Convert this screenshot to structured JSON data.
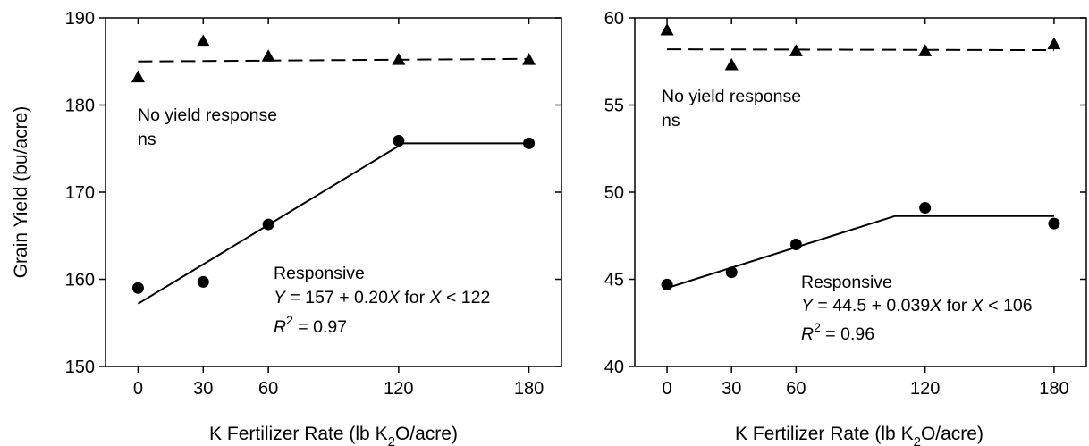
{
  "chart_data": [
    {
      "type": "scatter",
      "ylabel": "Grain Yield (bu/acre)",
      "xlabel_parts": [
        "K Fertilizer Rate (lb K",
        "2",
        "O/acre)"
      ],
      "xticks": [
        0,
        30,
        60,
        120,
        180
      ],
      "yticks": [
        150,
        160,
        170,
        180,
        190
      ],
      "xlim": [
        -15,
        195
      ],
      "ylim": [
        150,
        190
      ],
      "grid": false,
      "series": [
        {
          "marker": "triangle",
          "x": [
            0,
            30,
            60,
            120,
            180
          ],
          "y": [
            183.2,
            187.3,
            185.6,
            185.2,
            185.2
          ],
          "fit": {
            "style": "dashed",
            "points": [
              [
                0,
                185.0
              ],
              [
                180,
                185.3
              ]
            ]
          }
        },
        {
          "marker": "circle",
          "x": [
            0,
            30,
            60,
            120,
            180
          ],
          "y": [
            159.0,
            159.7,
            166.3,
            175.9,
            175.6
          ],
          "fit": {
            "style": "solid",
            "points": [
              [
                0,
                157.2
              ],
              [
                122,
                175.6
              ],
              [
                180,
                175.6
              ]
            ]
          }
        }
      ],
      "annotations": {
        "no_response": "No yield response",
        "ns": "ns",
        "responsive": "Responsive",
        "eq_y": "Y",
        "eq_mid": " = 157 + 0.20",
        "eq_x": "X",
        "eq_for": "  for ",
        "eq_x2": "X",
        "eq_end": " < 122",
        "r_label": "R",
        "r_sup": "2",
        "r_value": " = 0.97"
      }
    },
    {
      "type": "scatter",
      "ylabel": "",
      "xlabel_parts": [
        "K Fertilizer Rate (lb K",
        "2",
        "O/acre)"
      ],
      "xticks": [
        0,
        30,
        60,
        120,
        180
      ],
      "yticks": [
        40,
        45,
        50,
        55,
        60
      ],
      "xlim": [
        -15,
        195
      ],
      "ylim": [
        40,
        60
      ],
      "grid": false,
      "series": [
        {
          "marker": "triangle",
          "x": [
            0,
            30,
            60,
            120,
            180
          ],
          "y": [
            59.3,
            57.3,
            58.1,
            58.1,
            58.5
          ],
          "fit": {
            "style": "dashed",
            "points": [
              [
                0,
                58.2
              ],
              [
                180,
                58.15
              ]
            ]
          }
        },
        {
          "marker": "circle",
          "x": [
            0,
            30,
            60,
            120,
            180
          ],
          "y": [
            44.7,
            45.4,
            47.0,
            49.1,
            48.2
          ],
          "fit": {
            "style": "solid",
            "points": [
              [
                0,
                44.5
              ],
              [
                106,
                48.63
              ],
              [
                180,
                48.63
              ]
            ]
          }
        }
      ],
      "annotations": {
        "no_response": "No yield response",
        "ns": "ns",
        "responsive": "Responsive",
        "eq_y": "Y",
        "eq_mid": " = 44.5 + 0.039",
        "eq_x": "X",
        "eq_for": "  for ",
        "eq_x2": "X",
        "eq_end": " < 106",
        "r_label": "R",
        "r_sup": "2",
        "r_value": " = 0.96"
      }
    }
  ]
}
